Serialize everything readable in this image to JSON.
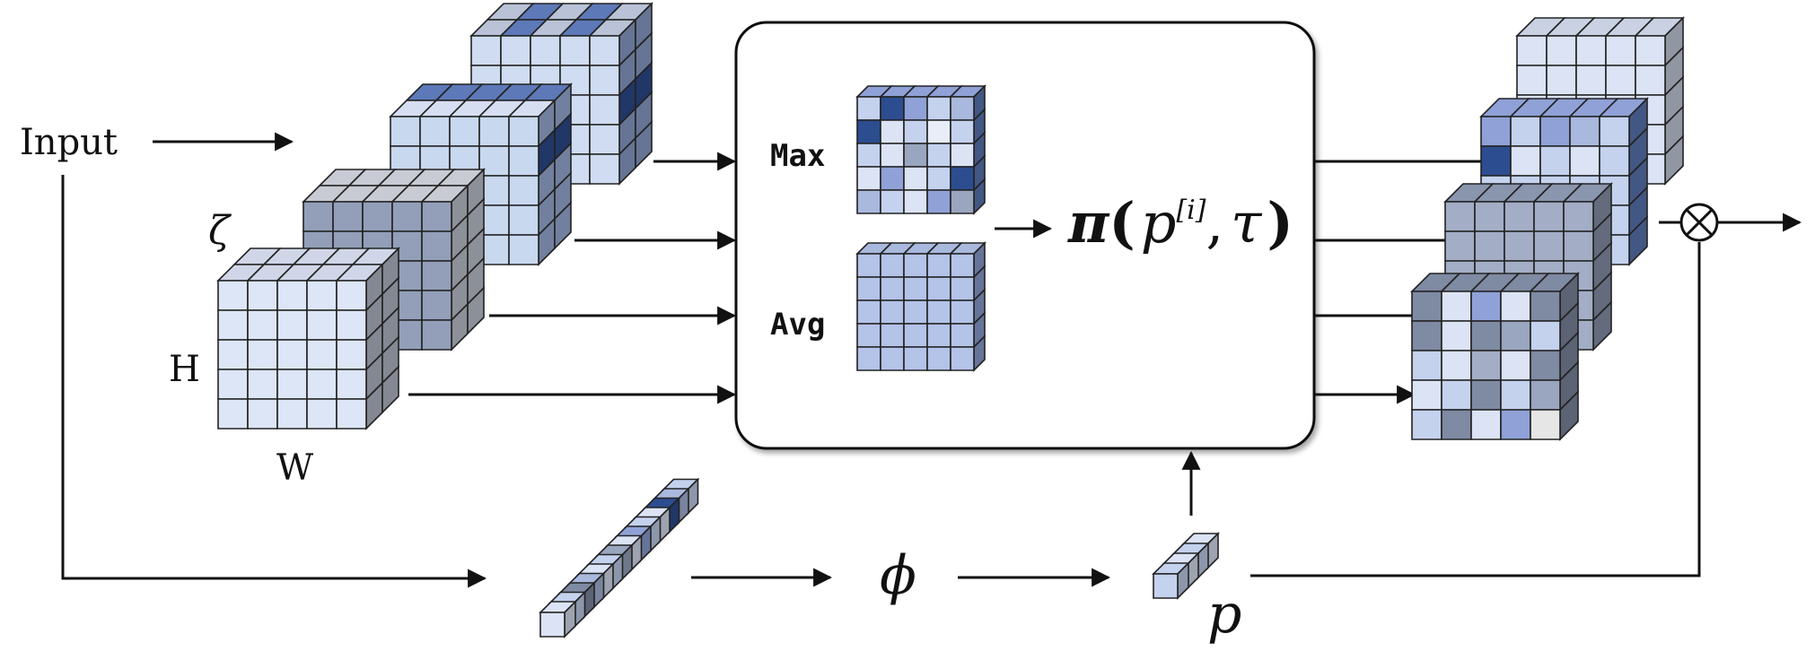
{
  "labels": {
    "input": "Input",
    "zeta": "ζ",
    "h": "H",
    "w": "W",
    "max": "Max",
    "avg": "Avg",
    "phi": "ϕ",
    "p": "p",
    "pi": "π",
    "paren_open": "(",
    "p_var": "p",
    "superscript": "[i]",
    "comma": ",",
    "tau": "τ",
    "paren_close": ")",
    "otimes": "⊗"
  },
  "colors": {
    "light": "#dbe3f5",
    "lighter": "#e8edf8",
    "mid": "#a9b8dd",
    "gray": "#9aa6bf",
    "grayDark": "#7f8aa3",
    "dark": "#2c4d8f",
    "accent": "#8fa1d6"
  }
}
